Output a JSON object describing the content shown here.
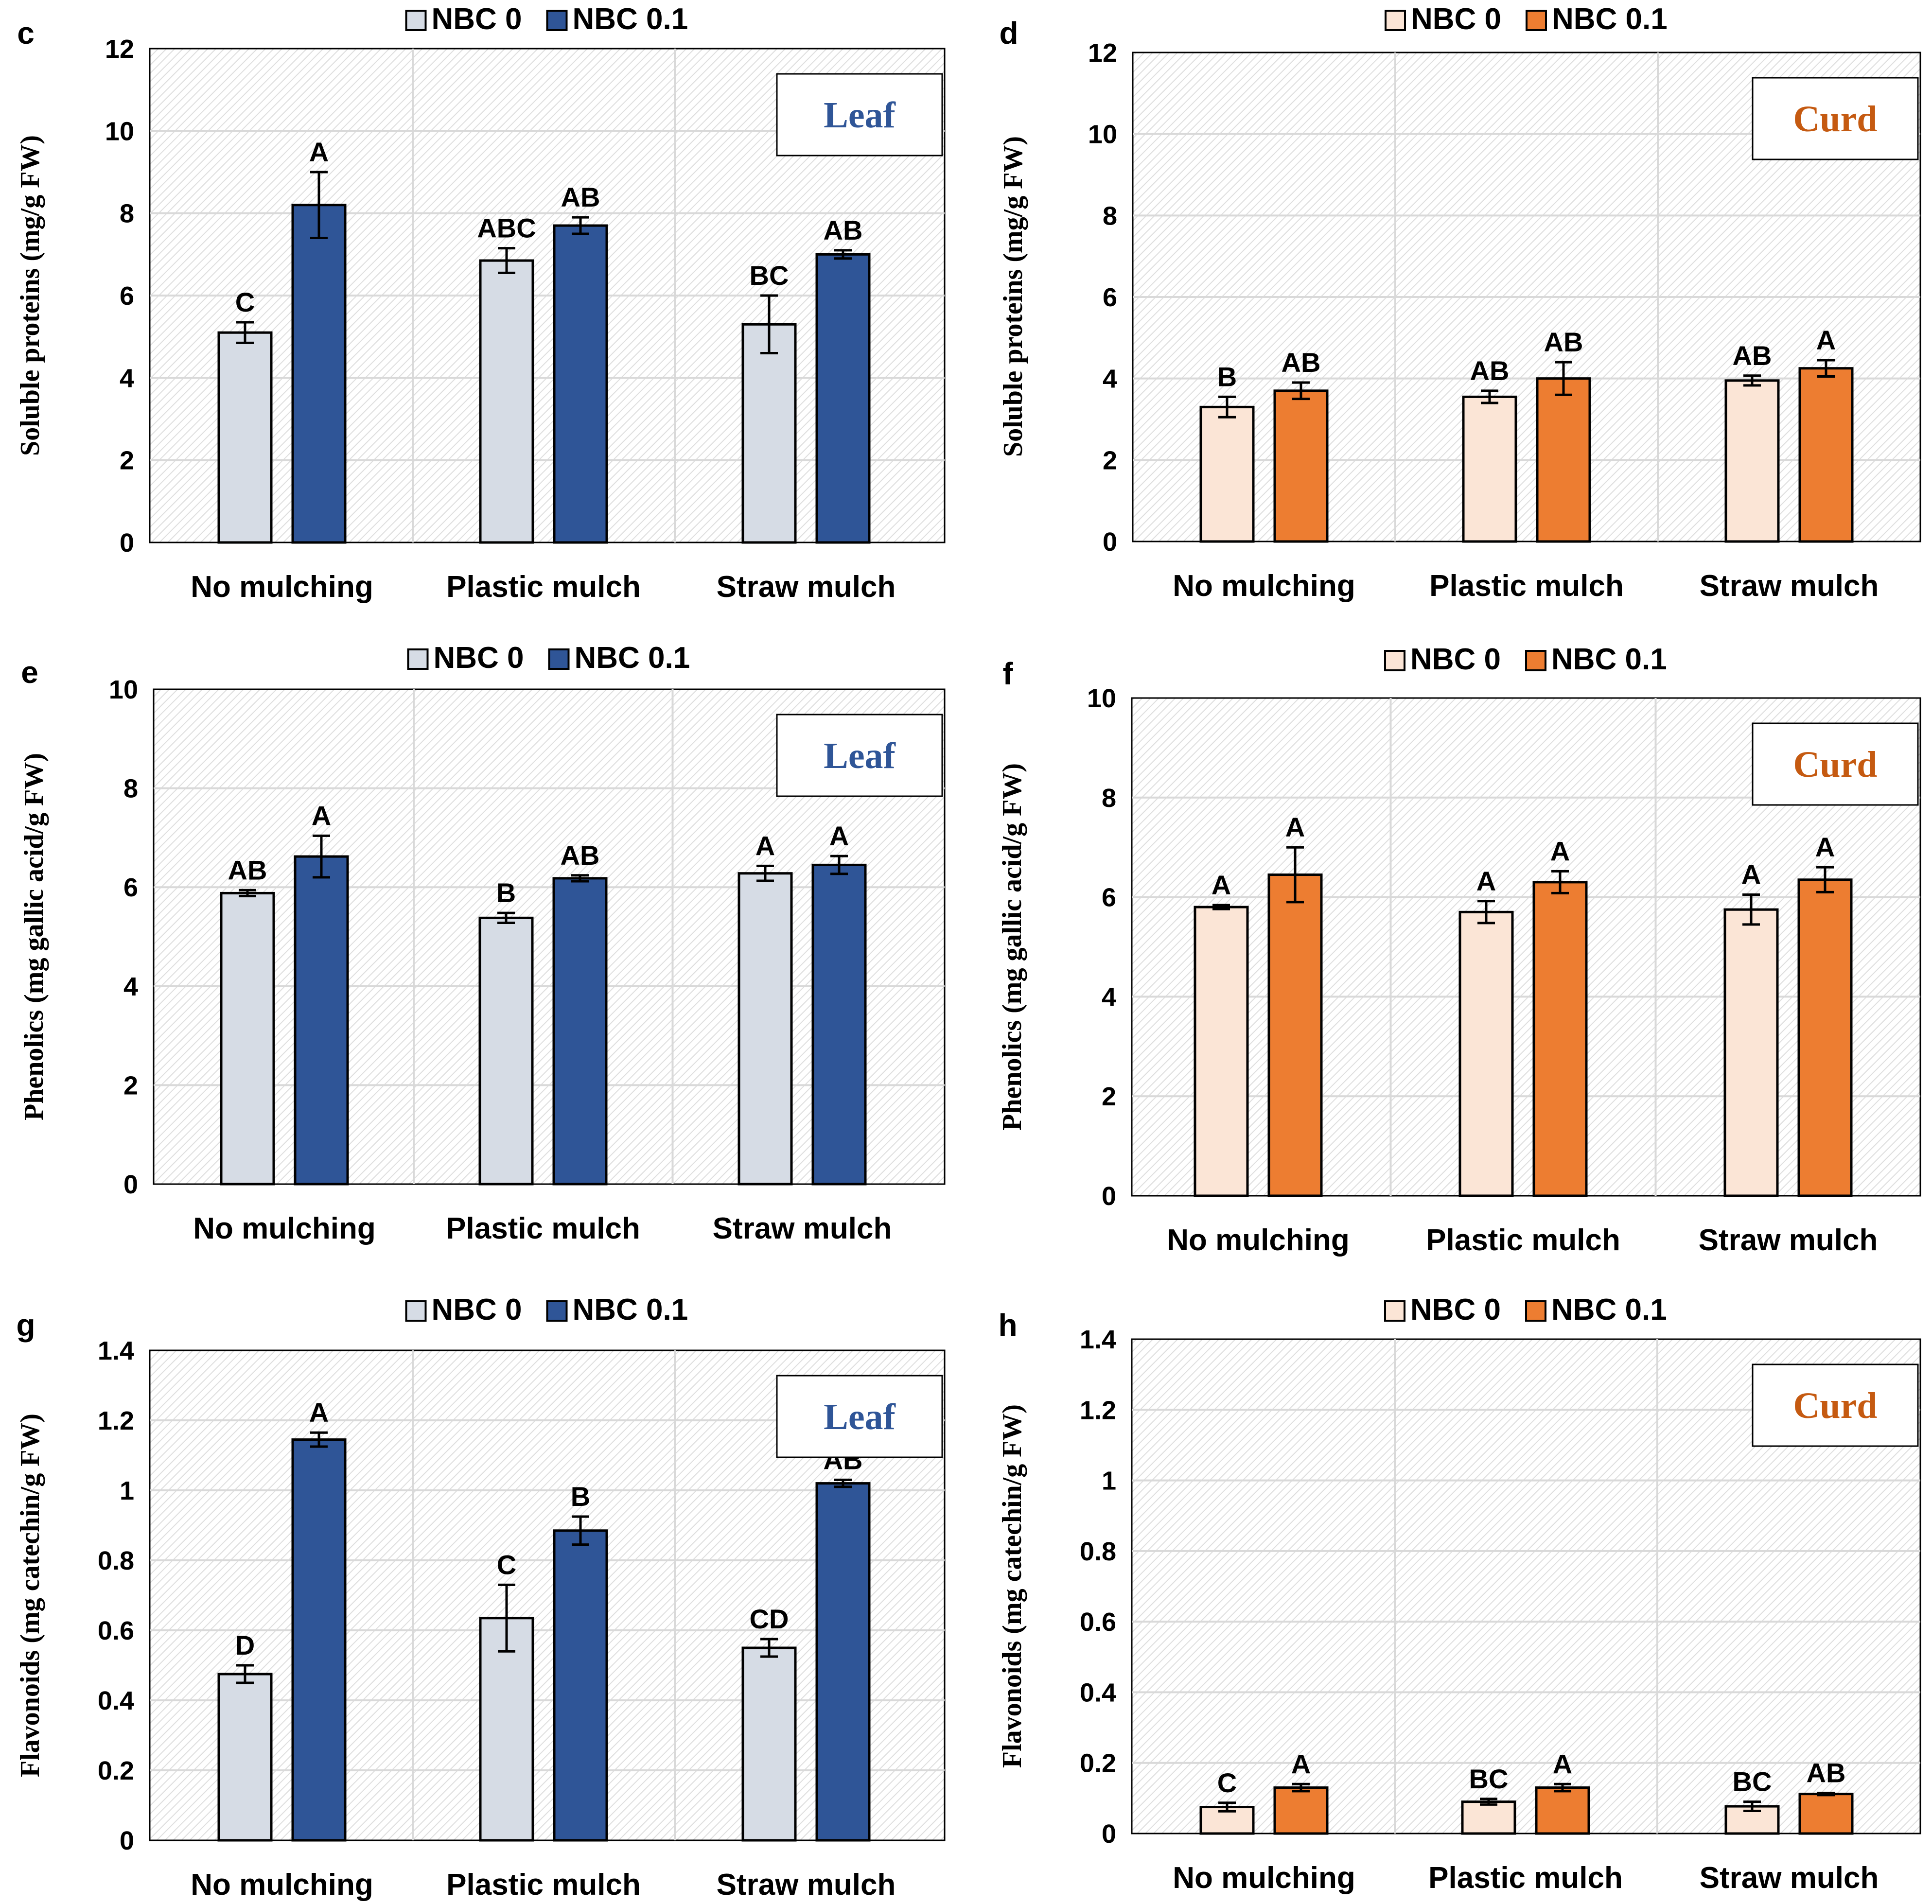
{
  "colors": {
    "leaf_nbc0": "#d6dce5",
    "leaf_nbc01": "#2f5597",
    "curd_nbc0": "#fbe5d6",
    "curd_nbc01": "#ed7d31",
    "leaf_label": "#2f5597",
    "curd_label": "#c55a11",
    "grid": "#d9d9d9",
    "bar_stroke": "#000000"
  },
  "chart_data": [
    {
      "type": "bar",
      "panel": "c",
      "tissue": "Leaf",
      "ylabel": "Soluble proteins (mg/g FW)",
      "ylim": [
        0,
        12
      ],
      "yticks": [
        "0",
        "2",
        "4",
        "6",
        "8",
        "10",
        "12"
      ],
      "categories": [
        "No mulching",
        "Plastic mulch",
        "Straw mulch"
      ],
      "series": [
        {
          "name": "NBC 0",
          "values": [
            5.1,
            6.85,
            5.3
          ],
          "errors": [
            0.25,
            0.3,
            0.7
          ],
          "letters": [
            "C",
            "ABC",
            "BC"
          ]
        },
        {
          "name": "NBC 0.1",
          "values": [
            8.2,
            7.7,
            7.0
          ],
          "errors": [
            0.8,
            0.2,
            0.1
          ],
          "letters": [
            "A",
            "AB",
            "AB"
          ]
        }
      ]
    },
    {
      "type": "bar",
      "panel": "d",
      "tissue": "Curd",
      "ylabel": "Soluble proteins (mg/g FW)",
      "ylim": [
        0,
        12
      ],
      "yticks": [
        "0",
        "2",
        "4",
        "6",
        "8",
        "10",
        "12"
      ],
      "categories": [
        "No mulching",
        "Plastic mulch",
        "Straw mulch"
      ],
      "series": [
        {
          "name": "NBC 0",
          "values": [
            3.3,
            3.55,
            3.95
          ],
          "errors": [
            0.25,
            0.15,
            0.12
          ],
          "letters": [
            "B",
            "AB",
            "AB"
          ]
        },
        {
          "name": "NBC 0.1",
          "values": [
            3.7,
            4.0,
            4.25
          ],
          "errors": [
            0.2,
            0.4,
            0.2
          ],
          "letters": [
            "AB",
            "AB",
            "A"
          ]
        }
      ]
    },
    {
      "type": "bar",
      "panel": "e",
      "tissue": "Leaf",
      "ylabel": "Phenolics (mg gallic acid/g FW)",
      "ylim": [
        0,
        10
      ],
      "yticks": [
        "0",
        "2",
        "4",
        "6",
        "8",
        "10"
      ],
      "categories": [
        "No mulching",
        "Plastic mulch",
        "Straw mulch"
      ],
      "series": [
        {
          "name": "NBC 0",
          "values": [
            5.88,
            5.38,
            6.28
          ],
          "errors": [
            0.06,
            0.1,
            0.15
          ],
          "letters": [
            "AB",
            "B",
            "A"
          ]
        },
        {
          "name": "NBC 0.1",
          "values": [
            6.62,
            6.18,
            6.45
          ],
          "errors": [
            0.42,
            0.06,
            0.18
          ],
          "letters": [
            "A",
            "AB",
            "A"
          ]
        }
      ]
    },
    {
      "type": "bar",
      "panel": "f",
      "tissue": "Curd",
      "ylabel": "Phenolics (mg gallic acid/g FW)",
      "ylim": [
        0,
        10
      ],
      "yticks": [
        "0",
        "2",
        "4",
        "6",
        "8",
        "10"
      ],
      "categories": [
        "No mulching",
        "Plastic mulch",
        "Straw mulch"
      ],
      "series": [
        {
          "name": "NBC 0",
          "values": [
            5.8,
            5.7,
            5.75
          ],
          "errors": [
            0.04,
            0.22,
            0.3
          ],
          "letters": [
            "A",
            "A",
            "A"
          ]
        },
        {
          "name": "NBC 0.1",
          "values": [
            6.45,
            6.3,
            6.35
          ],
          "errors": [
            0.55,
            0.22,
            0.25
          ],
          "letters": [
            "A",
            "A",
            "A"
          ]
        }
      ]
    },
    {
      "type": "bar",
      "panel": "g",
      "tissue": "Leaf",
      "ylabel": "Flavonoids (mg catechin/g FW)",
      "ylim": [
        0,
        1.4
      ],
      "yticks": [
        "0",
        "0.2",
        "0.4",
        "0.6",
        "0.8",
        "1",
        "1.2",
        "1.4"
      ],
      "categories": [
        "No mulching",
        "Plastic mulch",
        "Straw mulch"
      ],
      "series": [
        {
          "name": "NBC 0",
          "values": [
            0.475,
            0.635,
            0.55
          ],
          "errors": [
            0.025,
            0.095,
            0.025
          ],
          "letters": [
            "D",
            "C",
            "CD"
          ]
        },
        {
          "name": "NBC 0.1",
          "values": [
            1.145,
            0.885,
            1.02
          ],
          "errors": [
            0.02,
            0.04,
            0.01
          ],
          "letters": [
            "A",
            "B",
            "AB"
          ]
        }
      ]
    },
    {
      "type": "bar",
      "panel": "h",
      "tissue": "Curd",
      "ylabel": "Flavonoids (mg catechin/g FW)",
      "ylim": [
        0,
        1.4
      ],
      "yticks": [
        "0",
        "0.2",
        "0.4",
        "0.6",
        "0.8",
        "1",
        "1.2",
        "1.4"
      ],
      "categories": [
        "No mulching",
        "Plastic mulch",
        "Straw mulch"
      ],
      "series": [
        {
          "name": "NBC 0",
          "values": [
            0.075,
            0.09,
            0.077
          ],
          "errors": [
            0.012,
            0.008,
            0.013
          ],
          "letters": [
            "C",
            "BC",
            "BC"
          ]
        },
        {
          "name": "NBC 0.1",
          "values": [
            0.13,
            0.13,
            0.112
          ],
          "errors": [
            0.01,
            0.01,
            0.003
          ],
          "letters": [
            "A",
            "A",
            "AB"
          ]
        }
      ]
    }
  ]
}
